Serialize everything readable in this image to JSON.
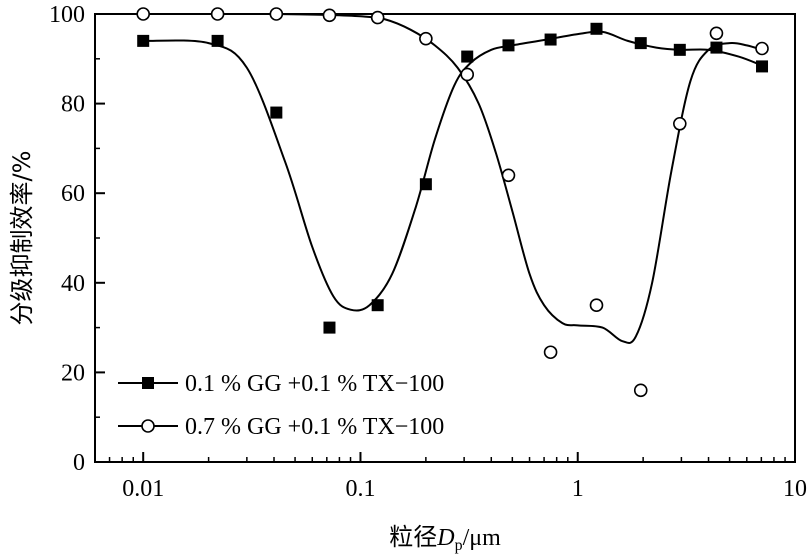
{
  "chart_data": {
    "type": "scatter",
    "title": "",
    "xlabel_prefix": "粒径",
    "xlabel_var": "D",
    "xlabel_sub": "p",
    "xlabel_unit": "/μm",
    "ylabel": "分级抑制效率/%",
    "xscale": "log",
    "xlim": [
      0.006,
      10
    ],
    "ylim": [
      0,
      100
    ],
    "xticks": [
      0.01,
      0.1,
      1,
      10
    ],
    "xtick_labels": [
      "0.01",
      "0.1",
      "1",
      "10"
    ],
    "yticks": [
      0,
      20,
      40,
      60,
      80,
      100
    ],
    "ytick_labels": [
      "0",
      "20",
      "40",
      "60",
      "80",
      "100"
    ],
    "grid": false,
    "legend_position": "bottom-left",
    "series": [
      {
        "name": "0.1 % GG +0.1 % TX−100",
        "marker": "filled-square",
        "color": "#000000",
        "x": [
          0.01,
          0.022,
          0.041,
          0.072,
          0.12,
          0.2,
          0.31,
          0.48,
          0.75,
          1.22,
          1.95,
          2.95,
          4.35,
          7.05
        ],
        "y": [
          94,
          94,
          78,
          30,
          35,
          62,
          90.5,
          93,
          94.3,
          96.7,
          93.5,
          92,
          92.5,
          88.3
        ],
        "curve_x": [
          0.01,
          0.02,
          0.03,
          0.045,
          0.06,
          0.075,
          0.09,
          0.11,
          0.14,
          0.18,
          0.22,
          0.27,
          0.32,
          0.4,
          0.5,
          0.7,
          1.0,
          1.3,
          1.7,
          2.3,
          3.0,
          4.0,
          5.5,
          7.05
        ],
        "curve_y": [
          94,
          93.5,
          88,
          67,
          48,
          37,
          34,
          35,
          42,
          57,
          72,
          84,
          89,
          92,
          93,
          94.2,
          95.5,
          96,
          94,
          92.5,
          92,
          92,
          90.5,
          88.5
        ]
      },
      {
        "name": "0.7 % GG +0.1 % TX−100",
        "marker": "open-circle",
        "color": "#000000",
        "x": [
          0.01,
          0.022,
          0.041,
          0.072,
          0.12,
          0.2,
          0.31,
          0.48,
          0.75,
          1.22,
          1.95,
          2.95,
          4.35,
          7.05
        ],
        "y": [
          100,
          100,
          100,
          99.7,
          99.2,
          94.5,
          86.5,
          64,
          24.5,
          35,
          16,
          75.5,
          95.7,
          92.3
        ],
        "curve_x": [
          0.01,
          0.02,
          0.04,
          0.07,
          0.1,
          0.13,
          0.17,
          0.22,
          0.28,
          0.35,
          0.42,
          0.5,
          0.6,
          0.7,
          0.85,
          1.0,
          1.3,
          1.6,
          1.85,
          2.2,
          2.7,
          3.3,
          4.0,
          5.0,
          6.0,
          7.05
        ],
        "curve_y": [
          100,
          100,
          100,
          99.8,
          99.5,
          98.8,
          96.5,
          93,
          88,
          80,
          69,
          56,
          42,
          35,
          31,
          30.5,
          30,
          27,
          28,
          40,
          65,
          85,
          92,
          93.5,
          93,
          92
        ]
      }
    ]
  }
}
